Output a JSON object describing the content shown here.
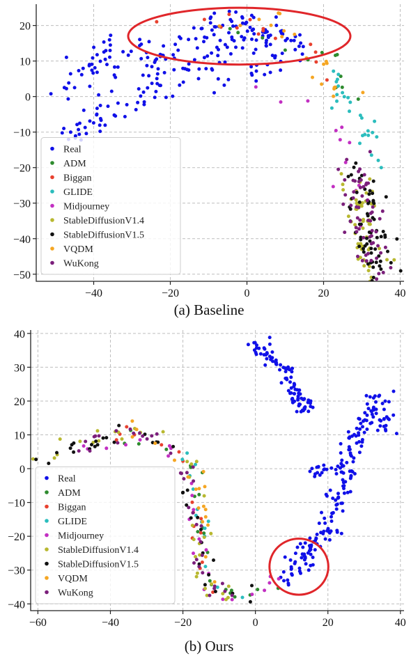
{
  "figure": {
    "captions": [
      "(a) Baseline",
      "(b) Ours"
    ]
  },
  "chart_data": [
    {
      "type": "scatter",
      "caption": "(a) Baseline",
      "title": "",
      "xlabel": "",
      "ylabel": "",
      "xlim": [
        -55,
        41
      ],
      "ylim": [
        -52,
        26
      ],
      "xticks": [
        -40,
        -20,
        0,
        20,
        40
      ],
      "yticks": [
        20,
        10,
        0,
        -10,
        -20,
        -30,
        -40,
        -50
      ],
      "grid": true,
      "legend_position": "lower-left",
      "highlight_ellipse": {
        "cx": -2,
        "cy": 17,
        "rx": 29,
        "ry": 8,
        "color": "#e0262a"
      },
      "series": [
        {
          "name": "Real",
          "color": "#1010e8"
        },
        {
          "name": "ADM",
          "color": "#2e8b2e"
        },
        {
          "name": "Biggan",
          "color": "#e8412f"
        },
        {
          "name": "GLIDE",
          "color": "#2bbdbd"
        },
        {
          "name": "Midjourney",
          "color": "#c22fc2"
        },
        {
          "name": "StableDiffusionV1.4",
          "color": "#b8b830"
        },
        {
          "name": "StableDiffusionV1.5",
          "color": "#111111"
        },
        {
          "name": "VQDM",
          "color": "#f5a623"
        },
        {
          "name": "WuKong",
          "color": "#7b1f7b"
        }
      ],
      "clusters": [
        {
          "series": "Real",
          "n": 130,
          "path": [
            [
              -52,
              -2
            ],
            [
              -47,
              3
            ],
            [
              -42,
              8
            ],
            [
              -37,
              11
            ],
            [
              -32,
              12
            ],
            [
              -27,
              13
            ],
            [
              -22,
              11
            ],
            [
              -17,
              14
            ],
            [
              -12,
              18
            ],
            [
              -7,
              17
            ],
            [
              -3,
              15
            ],
            [
              1,
              17
            ],
            [
              5,
              18
            ],
            [
              9,
              16
            ],
            [
              13,
              14
            ]
          ],
          "spread": 2.6
        },
        {
          "series": "Real",
          "n": 70,
          "path": [
            [
              -42,
              -6
            ],
            [
              -36,
              -3
            ],
            [
              -30,
              1
            ],
            [
              -24,
              4
            ],
            [
              -20,
              3
            ],
            [
              -14,
              9
            ],
            [
              -8,
              7
            ],
            [
              -4,
              5
            ],
            [
              0,
              8
            ],
            [
              4,
              10
            ],
            [
              8,
              11
            ],
            [
              11,
              14
            ]
          ],
          "spread": 2.8
        },
        {
          "series": "Real",
          "n": 20,
          "path": [
            [
              -46,
              -11
            ],
            [
              -42,
              -9
            ],
            [
              -38,
              -7
            ]
          ],
          "spread": 2.2
        },
        {
          "series": "Real",
          "n": 30,
          "path": [
            [
              -11,
              22
            ],
            [
              -6,
              21
            ],
            [
              -1,
              22
            ],
            [
              3,
              21
            ],
            [
              7,
              18
            ]
          ],
          "spread": 1.8
        },
        {
          "series": "ADM",
          "n": 12,
          "path": [
            [
              -14,
              20
            ],
            [
              -6,
              20
            ],
            [
              3,
              21
            ],
            [
              10,
              17
            ],
            [
              20,
              12
            ],
            [
              30,
              -6
            ]
          ],
          "spread": 2
        },
        {
          "series": "Biggan",
          "n": 14,
          "path": [
            [
              -22,
              19
            ],
            [
              -12,
              20
            ],
            [
              -2,
              21
            ],
            [
              6,
              19
            ],
            [
              15,
              15
            ],
            [
              22,
              6
            ]
          ],
          "spread": 2
        },
        {
          "series": "GLIDE",
          "n": 26,
          "path": [
            [
              22,
              8
            ],
            [
              25,
              0
            ],
            [
              28,
              -5
            ],
            [
              31,
              -8
            ],
            [
              33,
              -14
            ],
            [
              34,
              -21
            ]
          ],
          "spread": 1.5
        },
        {
          "series": "Midjourney",
          "n": 14,
          "path": [
            [
              -2,
              6
            ],
            [
              0,
              4
            ],
            [
              22,
              -6
            ],
            [
              28,
              -25
            ],
            [
              30,
              -35
            ],
            [
              33,
              -45
            ]
          ],
          "spread": 2
        },
        {
          "series": "StableDiffusionV1.4",
          "n": 55,
          "path": [
            [
              28,
              -22
            ],
            [
              29,
              -28
            ],
            [
              30,
              -34
            ],
            [
              31,
              -40
            ],
            [
              32,
              -46
            ],
            [
              33,
              -50
            ]
          ],
          "spread": 2.3
        },
        {
          "series": "StableDiffusionV1.5",
          "n": 65,
          "path": [
            [
              28,
              -21
            ],
            [
              30,
              -27
            ],
            [
              31,
              -33
            ],
            [
              32,
              -39
            ],
            [
              33,
              -45
            ],
            [
              34,
              -49
            ]
          ],
          "spread": 2.4
        },
        {
          "series": "VQDM",
          "n": 20,
          "path": [
            [
              -8,
              13
            ],
            [
              0,
              22
            ],
            [
              2,
              23
            ],
            [
              18,
              10
            ],
            [
              22,
              4
            ],
            [
              26,
              -2
            ]
          ],
          "spread": 2
        },
        {
          "series": "WuKong",
          "n": 60,
          "path": [
            [
              28,
              -20
            ],
            [
              29,
              -26
            ],
            [
              31,
              -32
            ],
            [
              31,
              -38
            ],
            [
              33,
              -44
            ],
            [
              34,
              -49
            ]
          ],
          "spread": 2.4
        }
      ]
    },
    {
      "type": "scatter",
      "caption": "(b) Ours",
      "title": "",
      "xlabel": "",
      "ylabel": "",
      "xlim": [
        -62,
        41
      ],
      "ylim": [
        -42,
        41
      ],
      "xticks": [
        -60,
        -40,
        -20,
        0,
        20,
        40
      ],
      "yticks": [
        40,
        30,
        20,
        10,
        0,
        -10,
        -20,
        -30,
        -40
      ],
      "grid": true,
      "legend_position": "lower-left",
      "highlight_circle": {
        "cx": 12,
        "cy": -29,
        "r": 8,
        "color": "#e0262a"
      },
      "series": [
        {
          "name": "Real",
          "color": "#1010e8"
        },
        {
          "name": "ADM",
          "color": "#2e8b2e"
        },
        {
          "name": "Biggan",
          "color": "#e8412f"
        },
        {
          "name": "GLIDE",
          "color": "#2bbdbd"
        },
        {
          "name": "Midjourney",
          "color": "#c22fc2"
        },
        {
          "name": "StableDiffusionV1.4",
          "color": "#b8b830"
        },
        {
          "name": "StableDiffusionV1.5",
          "color": "#111111"
        },
        {
          "name": "VQDM",
          "color": "#f5a623"
        },
        {
          "name": "WuKong",
          "color": "#7b1f7b"
        }
      ],
      "clusters": [
        {
          "series": "Real",
          "n": 90,
          "path": [
            [
              -1,
              37
            ],
            [
              3,
              34
            ],
            [
              6,
              31
            ],
            [
              9,
              28
            ],
            [
              10,
              24
            ],
            [
              12,
              20
            ],
            [
              14,
              17
            ]
          ],
          "spread": 1.2
        },
        {
          "series": "Real",
          "n": 200,
          "path": [
            [
              8,
              -33
            ],
            [
              12,
              -28
            ],
            [
              16,
              -22
            ],
            [
              20,
              -16
            ],
            [
              22,
              -12
            ],
            [
              24,
              -6
            ],
            [
              25,
              0
            ],
            [
              27,
              6
            ],
            [
              29,
              12
            ],
            [
              31,
              17
            ],
            [
              33,
              21
            ],
            [
              35,
              18
            ],
            [
              36,
              12
            ]
          ],
          "spread": 1.7
        },
        {
          "series": "Real",
          "n": 15,
          "path": [
            [
              16,
              -2
            ],
            [
              18,
              -1
            ],
            [
              20,
              0
            ]
          ],
          "spread": 1
        },
        {
          "series": "ADM",
          "n": 22,
          "path": [
            [
              -50,
              7
            ],
            [
              -40,
              9
            ],
            [
              -30,
              10
            ],
            [
              -18,
              2
            ],
            [
              -16,
              -10
            ],
            [
              -10,
              -37
            ],
            [
              5,
              -36
            ],
            [
              11,
              -32
            ]
          ],
          "spread": 1.2
        },
        {
          "series": "Biggan",
          "n": 16,
          "path": [
            [
              -48,
              6
            ],
            [
              -35,
              10
            ],
            [
              -18,
              4
            ],
            [
              -16,
              -8
            ],
            [
              -15,
              -35
            ],
            [
              -5,
              -38
            ]
          ],
          "spread": 1.2
        },
        {
          "series": "GLIDE",
          "n": 14,
          "path": [
            [
              -22,
              6
            ],
            [
              -18,
              2
            ],
            [
              -16,
              -6
            ],
            [
              -12,
              -36
            ],
            [
              0,
              -38
            ]
          ],
          "spread": 1.2
        },
        {
          "series": "Midjourney",
          "n": 24,
          "path": [
            [
              -52,
              4
            ],
            [
              -38,
              9
            ],
            [
              -25,
              8
            ],
            [
              -17,
              -3
            ],
            [
              -16,
              -14
            ],
            [
              -14,
              -36
            ],
            [
              -4,
              -39
            ],
            [
              9,
              -33
            ]
          ],
          "spread": 1.3
        },
        {
          "series": "StableDiffusionV1.4",
          "n": 35,
          "path": [
            [
              -58,
              3
            ],
            [
              -48,
              7
            ],
            [
              -38,
              10
            ],
            [
              -28,
              10
            ],
            [
              -20,
              6
            ],
            [
              -17,
              -2
            ],
            [
              -16,
              -18
            ],
            [
              -15,
              -34
            ],
            [
              -6,
              -38
            ]
          ],
          "spread": 1.5
        },
        {
          "series": "StableDiffusionV1.5",
          "n": 38,
          "path": [
            [
              -58,
              2
            ],
            [
              -50,
              6
            ],
            [
              -42,
              9
            ],
            [
              -33,
              11
            ],
            [
              -25,
              8
            ],
            [
              -17,
              -14
            ],
            [
              -12,
              -37
            ],
            [
              2,
              -38
            ]
          ],
          "spread": 1.5
        },
        {
          "series": "VQDM",
          "n": 18,
          "path": [
            [
              -35,
              10
            ],
            [
              -22,
              7
            ],
            [
              -16,
              -5
            ],
            [
              -14,
              -8
            ],
            [
              -16,
              -18
            ],
            [
              -10,
              -37
            ]
          ],
          "spread": 1.3
        },
        {
          "series": "WuKong",
          "n": 38,
          "path": [
            [
              -56,
              3
            ],
            [
              -47,
              7
            ],
            [
              -38,
              9
            ],
            [
              -30,
              11
            ],
            [
              -22,
              7
            ],
            [
              -17,
              -8
            ],
            [
              -16,
              -19
            ],
            [
              -13,
              -36
            ],
            [
              -2,
              -38
            ],
            [
              8,
              -34
            ]
          ],
          "spread": 1.5
        }
      ]
    }
  ]
}
